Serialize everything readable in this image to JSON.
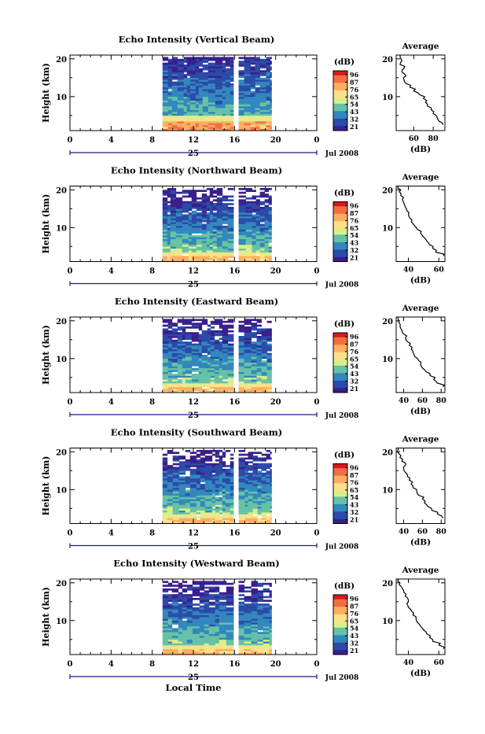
{
  "page": {
    "bottom_label": "Local Time"
  },
  "colorbar": {
    "label": "(dB)",
    "ticks": [
      "96",
      "87",
      "76",
      "65",
      "54",
      "43",
      "32",
      "21"
    ],
    "colors": [
      "#d7191c",
      "#f46d43",
      "#fdae61",
      "#fee08b",
      "#d9ef8b",
      "#66c2a5",
      "#3288bd",
      "#2b4ba8",
      "#3a1f8c"
    ]
  },
  "chart_data": [
    {
      "type": "heatmap",
      "title": "Echo Intensity (Vertical Beam)",
      "ylabel": "Height (km)",
      "y_ticks": [
        "20",
        "10"
      ],
      "x_ticks": [
        "0",
        "4",
        "8",
        "12",
        "16",
        "20",
        "0"
      ],
      "day_label": "25",
      "date_label": "Jul 2008",
      "xlim": [
        0,
        24
      ],
      "ylim": [
        1,
        21
      ],
      "data_time_ranges": [
        [
          9,
          15.9
        ],
        [
          16.4,
          19.6
        ]
      ],
      "profile": {
        "title": "Average",
        "xlabel": "(dB)",
        "x_ticks": [
          "60",
          "80"
        ],
        "y_ticks": [
          "20",
          "10"
        ],
        "xlim": [
          42,
          92
        ],
        "points": [
          [
            90,
            2.5
          ],
          [
            86,
            3.5
          ],
          [
            84,
            4.5
          ],
          [
            80,
            5.5
          ],
          [
            78,
            6.5
          ],
          [
            74,
            7.5
          ],
          [
            72,
            8.5
          ],
          [
            70,
            9.5
          ],
          [
            66,
            10.5
          ],
          [
            60,
            11.5
          ],
          [
            56,
            12.5
          ],
          [
            52,
            13.5
          ],
          [
            50,
            14.5
          ],
          [
            52,
            15.5
          ],
          [
            48,
            16.5
          ],
          [
            50,
            17.5
          ],
          [
            46,
            18.5
          ],
          [
            48,
            19.5
          ],
          [
            46,
            20.5
          ]
        ]
      }
    },
    {
      "type": "heatmap",
      "title": "Echo Intensity (Northward Beam)",
      "ylabel": "Height (km)",
      "y_ticks": [
        "20",
        "10"
      ],
      "x_ticks": [
        "0",
        "4",
        "8",
        "12",
        "16",
        "20",
        "0"
      ],
      "day_label": "25",
      "date_label": "Jul 2008",
      "xlim": [
        0,
        24
      ],
      "ylim": [
        1,
        21
      ],
      "data_time_ranges": [
        [
          9,
          15.9
        ],
        [
          16.4,
          19.6
        ]
      ],
      "profile": {
        "title": "Average",
        "xlabel": "(dB)",
        "x_ticks": [
          "40",
          "60"
        ],
        "y_ticks": [
          "20",
          "10"
        ],
        "xlim": [
          32,
          64
        ],
        "points": [
          [
            63,
            2.5
          ],
          [
            58,
            3.5
          ],
          [
            56,
            4.5
          ],
          [
            54,
            5.5
          ],
          [
            52,
            6.5
          ],
          [
            50,
            7.5
          ],
          [
            48,
            8.5
          ],
          [
            46,
            9.5
          ],
          [
            44,
            10.5
          ],
          [
            42,
            11.5
          ],
          [
            41,
            12.5
          ],
          [
            40,
            13.5
          ],
          [
            39,
            14.5
          ],
          [
            38,
            15.5
          ],
          [
            37,
            16.5
          ],
          [
            36,
            17.5
          ],
          [
            35,
            18.5
          ],
          [
            34,
            19.5
          ],
          [
            33,
            20.5
          ]
        ]
      }
    },
    {
      "type": "heatmap",
      "title": "Echo Intensity (Eastward Beam)",
      "ylabel": "Height (km)",
      "y_ticks": [
        "20",
        "10"
      ],
      "x_ticks": [
        "0",
        "4",
        "8",
        "12",
        "16",
        "20",
        "0"
      ],
      "day_label": "25",
      "date_label": "Jul 2008",
      "xlim": [
        0,
        24
      ],
      "ylim": [
        1,
        21
      ],
      "data_time_ranges": [
        [
          9,
          15.9
        ],
        [
          16.4,
          19.6
        ]
      ],
      "profile": {
        "title": "Average",
        "xlabel": "(dB)",
        "x_ticks": [
          "40",
          "60",
          "80"
        ],
        "y_ticks": [
          "20",
          "10"
        ],
        "xlim": [
          32,
          84
        ],
        "points": [
          [
            82,
            2.5
          ],
          [
            76,
            3.5
          ],
          [
            72,
            4.5
          ],
          [
            68,
            5.5
          ],
          [
            64,
            6.5
          ],
          [
            60,
            7.5
          ],
          [
            58,
            8.5
          ],
          [
            56,
            9.5
          ],
          [
            52,
            10.5
          ],
          [
            50,
            11.5
          ],
          [
            48,
            12.5
          ],
          [
            46,
            13.5
          ],
          [
            44,
            14.5
          ],
          [
            42,
            15.5
          ],
          [
            40,
            16.5
          ],
          [
            38,
            17.5
          ],
          [
            36,
            18.5
          ],
          [
            35,
            19.5
          ],
          [
            34,
            20.5
          ]
        ]
      }
    },
    {
      "type": "heatmap",
      "title": "Echo Intensity (Southward Beam)",
      "ylabel": "Height (km)",
      "y_ticks": [
        "20",
        "10"
      ],
      "x_ticks": [
        "0",
        "4",
        "8",
        "12",
        "16",
        "20",
        "0"
      ],
      "day_label": "25",
      "date_label": "Jul 2008",
      "xlim": [
        0,
        24
      ],
      "ylim": [
        1,
        21
      ],
      "data_time_ranges": [
        [
          9,
          15.9
        ],
        [
          16.4,
          19.6
        ]
      ],
      "profile": {
        "title": "Average",
        "xlabel": "(dB)",
        "x_ticks": [
          "40",
          "60",
          "80"
        ],
        "y_ticks": [
          "20",
          "10"
        ],
        "xlim": [
          32,
          84
        ],
        "points": [
          [
            82,
            2.5
          ],
          [
            76,
            3.5
          ],
          [
            70,
            4.5
          ],
          [
            66,
            5.5
          ],
          [
            62,
            6.5
          ],
          [
            60,
            7.5
          ],
          [
            56,
            8.5
          ],
          [
            54,
            9.5
          ],
          [
            50,
            10.5
          ],
          [
            48,
            11.5
          ],
          [
            46,
            12.5
          ],
          [
            44,
            13.5
          ],
          [
            42,
            14.5
          ],
          [
            40,
            15.5
          ],
          [
            42,
            16.5
          ],
          [
            38,
            17.5
          ],
          [
            36,
            18.5
          ],
          [
            35,
            19.5
          ],
          [
            34,
            20.5
          ]
        ]
      }
    },
    {
      "type": "heatmap",
      "title": "Echo Intensity (Westward Beam)",
      "ylabel": "Height (km)",
      "y_ticks": [
        "20",
        "10"
      ],
      "x_ticks": [
        "0",
        "4",
        "8",
        "12",
        "16",
        "20",
        "0"
      ],
      "day_label": "25",
      "date_label": "Jul 2008",
      "xlim": [
        0,
        24
      ],
      "ylim": [
        1,
        21
      ],
      "data_time_ranges": [
        [
          9,
          15.9
        ],
        [
          16.4,
          19.6
        ]
      ],
      "profile": {
        "title": "Average",
        "xlabel": "(dB)",
        "x_ticks": [
          "40",
          "60"
        ],
        "y_ticks": [
          "20",
          "10"
        ],
        "xlim": [
          32,
          64
        ],
        "points": [
          [
            63,
            2.5
          ],
          [
            60,
            3.5
          ],
          [
            56,
            4.5
          ],
          [
            54,
            5.5
          ],
          [
            52,
            6.5
          ],
          [
            50,
            7.5
          ],
          [
            48,
            8.5
          ],
          [
            46,
            9.5
          ],
          [
            45,
            10.5
          ],
          [
            43,
            11.5
          ],
          [
            42,
            12.5
          ],
          [
            40,
            13.5
          ],
          [
            39,
            14.5
          ],
          [
            40,
            15.5
          ],
          [
            38,
            16.5
          ],
          [
            37,
            17.5
          ],
          [
            36,
            18.5
          ],
          [
            34,
            19.5
          ],
          [
            33,
            20.5
          ]
        ]
      }
    }
  ]
}
